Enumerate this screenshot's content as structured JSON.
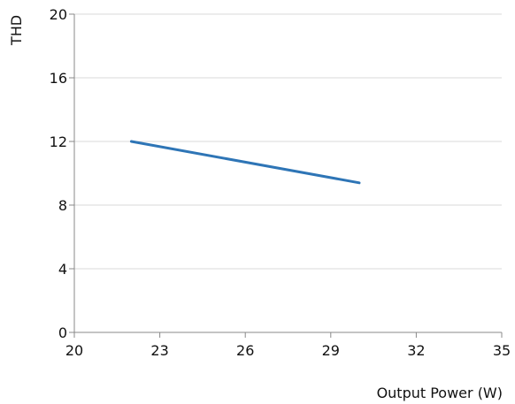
{
  "chart_data": {
    "type": "line",
    "title": "",
    "xlabel": "Output Power (W)",
    "ylabel": "THD",
    "xlim": [
      20,
      35
    ],
    "ylim": [
      0,
      20
    ],
    "xticks": [
      20,
      23,
      26,
      29,
      32,
      35
    ],
    "yticks": [
      0,
      4,
      8,
      12,
      16,
      20
    ],
    "grid": {
      "horizontal": true,
      "vertical": false
    },
    "legend": "none",
    "series": [
      {
        "color": "#2e75b6",
        "x": [
          22,
          30
        ],
        "y": [
          12,
          9.4
        ]
      }
    ]
  }
}
